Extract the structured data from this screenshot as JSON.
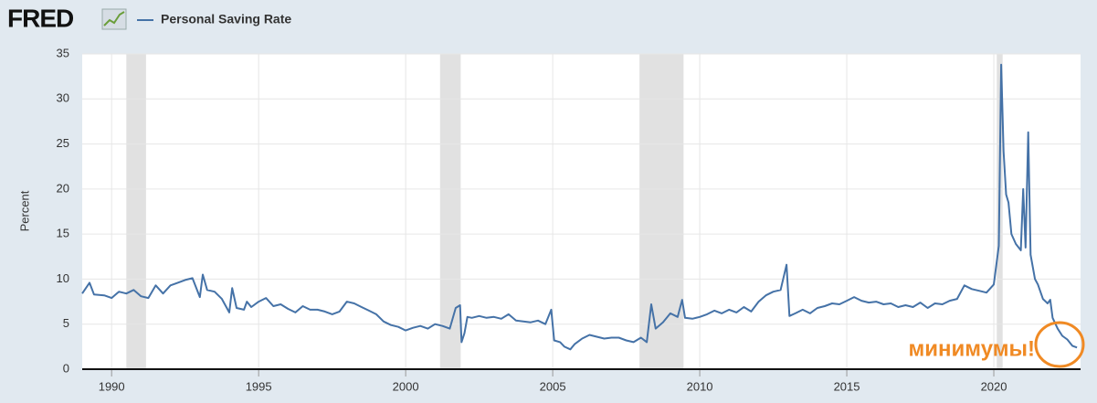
{
  "chart_data": {
    "type": "line",
    "logo": "FRED",
    "ylabel": "Percent",
    "annotation": "минимумы!",
    "annotation_color": "#f08a24",
    "grid": true,
    "xlim": [
      1989.0,
      2022.95
    ],
    "ylim": [
      0,
      35
    ],
    "xticks": [
      1990,
      1995,
      2000,
      2005,
      2010,
      2015,
      2020
    ],
    "yticks": [
      0,
      5,
      10,
      15,
      20,
      25,
      30,
      35
    ],
    "recessions": [
      [
        1990.5,
        1991.17
      ],
      [
        2001.17,
        2001.87
      ],
      [
        2007.95,
        2009.45
      ],
      [
        2020.1,
        2020.3
      ]
    ],
    "x": [
      1989.0,
      1989.25,
      1989.4,
      1989.75,
      1990.0,
      1990.25,
      1990.5,
      1990.75,
      1991.0,
      1991.25,
      1991.5,
      1991.75,
      1992.0,
      1992.25,
      1992.5,
      1992.75,
      1993.0,
      1993.1,
      1993.25,
      1993.5,
      1993.75,
      1994.0,
      1994.1,
      1994.25,
      1994.5,
      1994.6,
      1994.75,
      1995.0,
      1995.25,
      1995.5,
      1995.75,
      1996.0,
      1996.25,
      1996.5,
      1996.75,
      1997.0,
      1997.25,
      1997.5,
      1997.75,
      1998.0,
      1998.25,
      1998.5,
      1998.75,
      1999.0,
      1999.25,
      1999.5,
      1999.75,
      2000.0,
      2000.25,
      2000.5,
      2000.75,
      2001.0,
      2001.25,
      2001.5,
      2001.7,
      2001.85,
      2001.9,
      2002.0,
      2002.1,
      2002.25,
      2002.5,
      2002.75,
      2003.0,
      2003.25,
      2003.5,
      2003.75,
      2004.0,
      2004.25,
      2004.5,
      2004.75,
      2004.95,
      2005.05,
      2005.25,
      2005.4,
      2005.6,
      2005.75,
      2006.0,
      2006.25,
      2006.5,
      2006.75,
      2007.0,
      2007.25,
      2007.5,
      2007.75,
      2008.0,
      2008.2,
      2008.35,
      2008.5,
      2008.75,
      2009.0,
      2009.25,
      2009.4,
      2009.5,
      2009.75,
      2010.0,
      2010.25,
      2010.5,
      2010.75,
      2011.0,
      2011.25,
      2011.5,
      2011.75,
      2012.0,
      2012.25,
      2012.5,
      2012.75,
      2012.95,
      2013.05,
      2013.25,
      2013.5,
      2013.75,
      2014.0,
      2014.25,
      2014.5,
      2014.75,
      2015.0,
      2015.25,
      2015.5,
      2015.75,
      2016.0,
      2016.25,
      2016.5,
      2016.75,
      2017.0,
      2017.25,
      2017.5,
      2017.75,
      2018.0,
      2018.25,
      2018.5,
      2018.75,
      2019.0,
      2019.25,
      2019.5,
      2019.75,
      2020.0,
      2020.17,
      2020.25,
      2020.33,
      2020.42,
      2020.5,
      2020.6,
      2020.75,
      2020.92,
      2021.0,
      2021.08,
      2021.17,
      2021.25,
      2021.4,
      2021.5,
      2021.67,
      2021.83,
      2021.92,
      2022.0,
      2022.17,
      2022.33,
      2022.5,
      2022.67,
      2022.83
    ],
    "series": [
      {
        "name": "Personal Saving Rate",
        "color": "#4572a7",
        "values": [
          8.4,
          9.6,
          8.3,
          8.2,
          7.9,
          8.6,
          8.4,
          8.8,
          8.1,
          7.9,
          9.3,
          8.4,
          9.3,
          9.6,
          9.9,
          10.1,
          8.0,
          10.5,
          8.8,
          8.6,
          7.8,
          6.3,
          9.0,
          6.8,
          6.6,
          7.5,
          6.9,
          7.5,
          7.9,
          7.0,
          7.2,
          6.7,
          6.3,
          7.0,
          6.6,
          6.6,
          6.4,
          6.1,
          6.4,
          7.5,
          7.3,
          6.9,
          6.5,
          6.1,
          5.3,
          4.9,
          4.7,
          4.3,
          4.6,
          4.8,
          4.5,
          5.0,
          4.8,
          4.5,
          6.8,
          7.1,
          3.0,
          4.0,
          5.8,
          5.7,
          5.9,
          5.7,
          5.8,
          5.6,
          6.1,
          5.4,
          5.3,
          5.2,
          5.4,
          5.0,
          6.6,
          3.2,
          3.0,
          2.5,
          2.2,
          2.8,
          3.4,
          3.8,
          3.6,
          3.4,
          3.5,
          3.5,
          3.2,
          3.0,
          3.5,
          3.0,
          7.2,
          4.5,
          5.2,
          6.2,
          5.8,
          7.7,
          5.7,
          5.6,
          5.8,
          6.1,
          6.5,
          6.2,
          6.6,
          6.3,
          6.9,
          6.4,
          7.5,
          8.2,
          8.6,
          8.8,
          11.6,
          5.9,
          6.2,
          6.6,
          6.2,
          6.8,
          7.0,
          7.3,
          7.2,
          7.6,
          8.0,
          7.6,
          7.4,
          7.5,
          7.2,
          7.3,
          6.9,
          7.1,
          6.9,
          7.4,
          6.8,
          7.3,
          7.2,
          7.6,
          7.8,
          9.3,
          8.9,
          8.7,
          8.5,
          9.4,
          13.7,
          33.8,
          24.2,
          19.4,
          18.5,
          15.0,
          13.9,
          13.2,
          20.0,
          13.5,
          26.3,
          12.7,
          10.0,
          9.4,
          7.8,
          7.3,
          7.7,
          5.7,
          4.5,
          3.7,
          3.3,
          2.6,
          2.4
        ]
      }
    ]
  }
}
